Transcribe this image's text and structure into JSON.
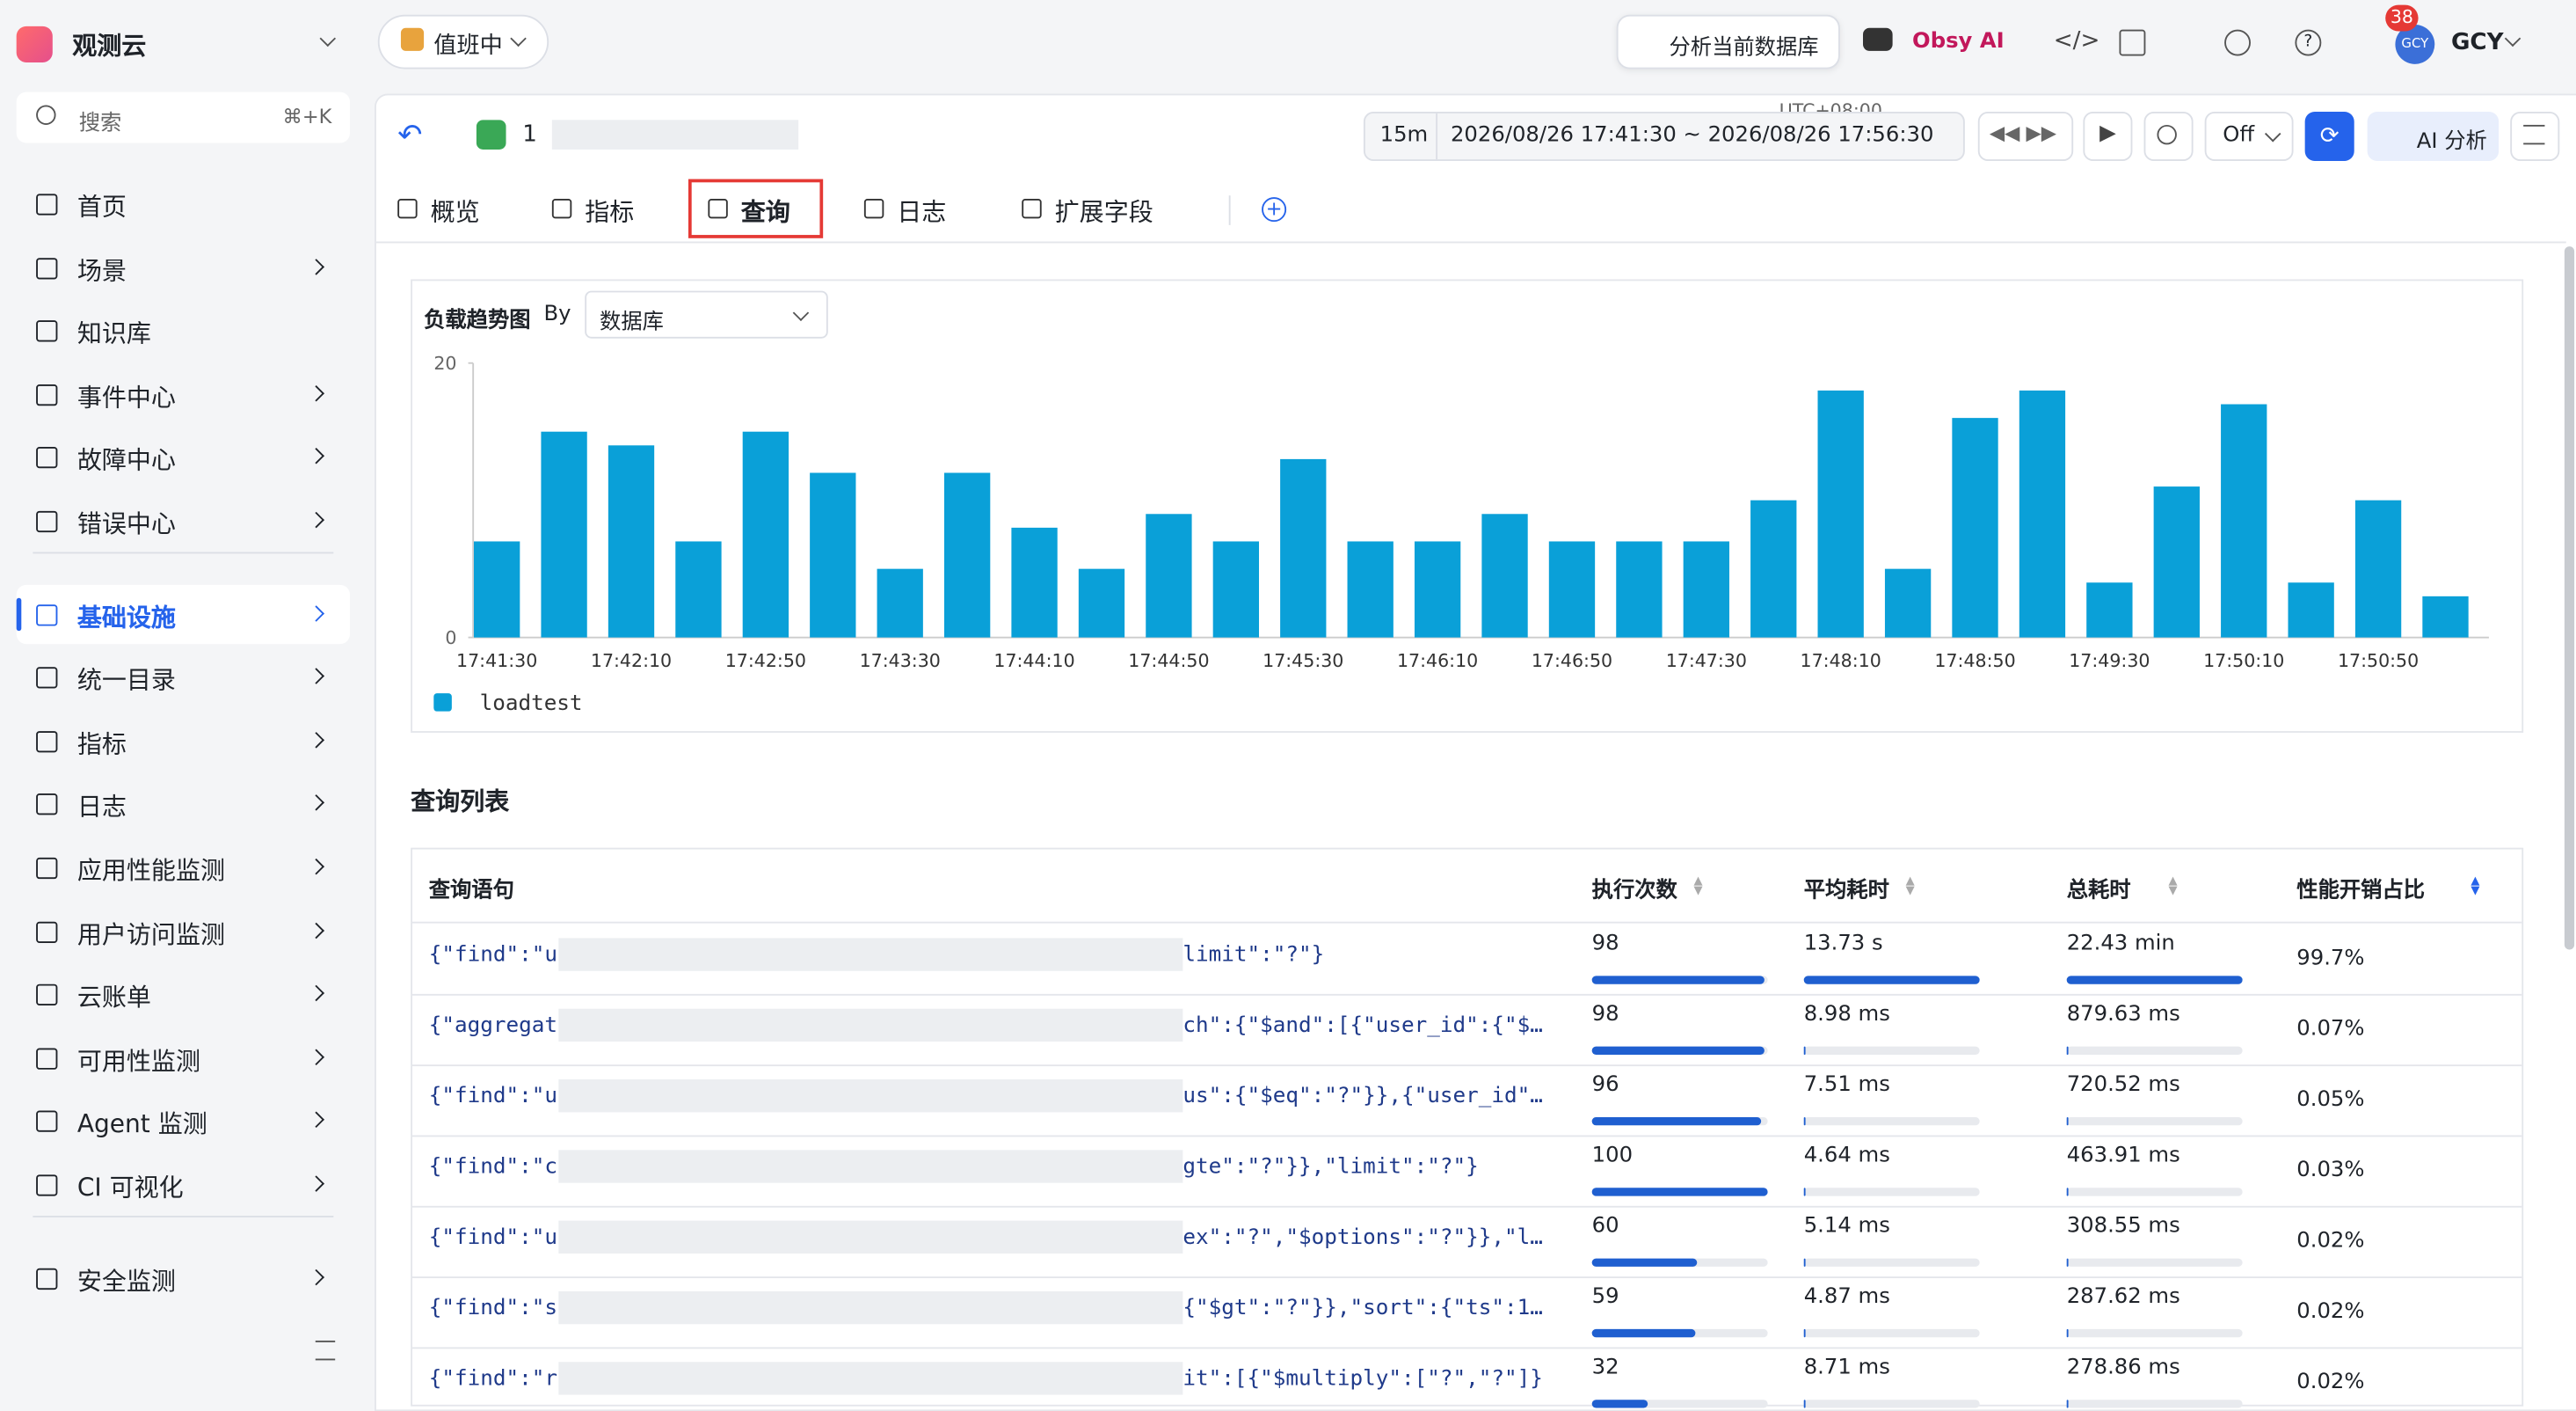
{
  "topbar": {
    "brand": "观测云",
    "duty": "值班中",
    "analyze": "分析当前数据库",
    "obsy": "Obsy AI",
    "badge": "38",
    "avatar": "GCY",
    "user": "GCY"
  },
  "search": {
    "placeholder": "搜索",
    "shortcut": "⌘+K"
  },
  "nav": {
    "groups": [
      {
        "items": [
          {
            "label": "首页",
            "children": false
          },
          {
            "label": "场景",
            "children": true
          },
          {
            "label": "知识库",
            "children": false
          },
          {
            "label": "事件中心",
            "children": true
          },
          {
            "label": "故障中心",
            "children": true
          },
          {
            "label": "错误中心",
            "children": true
          }
        ]
      },
      {
        "items": [
          {
            "label": "基础设施",
            "children": true,
            "active": true
          },
          {
            "label": "统一目录",
            "children": true
          },
          {
            "label": "指标",
            "children": true
          },
          {
            "label": "日志",
            "children": true
          },
          {
            "label": "应用性能监测",
            "children": true
          },
          {
            "label": "用户访问监测",
            "children": true
          },
          {
            "label": "云账单",
            "children": true
          },
          {
            "label": "可用性监测",
            "children": true
          },
          {
            "label": "Agent 监测",
            "children": true
          },
          {
            "label": "CI 可视化",
            "children": true
          }
        ]
      },
      {
        "items": [
          {
            "label": "安全监测",
            "children": true
          }
        ]
      }
    ]
  },
  "header": {
    "name": "1",
    "range_short": "15m",
    "timezone": "UTC+08:00",
    "range": "2026/08/26 17:41:30 ~ 2026/08/26 17:56:30",
    "refresh": "Off",
    "ai": "AI 分析"
  },
  "tabs": [
    {
      "label": "概览"
    },
    {
      "label": "指标"
    },
    {
      "label": "查询",
      "active": true
    },
    {
      "label": "日志"
    },
    {
      "label": "扩展字段"
    }
  ],
  "chart_data": {
    "type": "bar",
    "title": "负载趋势图",
    "by_label": "By",
    "by_value": "数据库",
    "categories": [
      "17:41:30",
      null,
      "17:42:10",
      null,
      "17:42:50",
      null,
      "17:43:30",
      null,
      "17:44:10",
      null,
      "17:44:50",
      null,
      "17:45:30",
      null,
      "17:46:10",
      null,
      "17:46:50",
      null,
      "17:47:30",
      null,
      "17:48:10",
      null,
      "17:48:50",
      null,
      "17:49:30",
      null,
      "17:50:10",
      null,
      "17:50:50",
      null
    ],
    "series": [
      {
        "name": "loadtest",
        "color": "#0aa0d8",
        "values": [
          7,
          15,
          14,
          7,
          15,
          12,
          5,
          12,
          8,
          5,
          9,
          7,
          13,
          7,
          7,
          9,
          7,
          7,
          7,
          10,
          18,
          5,
          16,
          18,
          4,
          11,
          17,
          4,
          10,
          3
        ]
      }
    ],
    "ylim": [
      0,
      20
    ],
    "yticks": [
      0,
      20
    ],
    "legend": "bottom-left"
  },
  "table": {
    "title": "查询列表",
    "columns": [
      "查询语句",
      "执行次数",
      "平均耗时",
      "总耗时",
      "性能开销占比"
    ],
    "rows": [
      {
        "prefix": "{\"find\":\"u",
        "suffix": "limit\":\"?\"}",
        "count": 98,
        "avg": {
          "value": 13730,
          "label": "13.73 s"
        },
        "total": {
          "value": 1345800,
          "label": "22.43 min"
        },
        "ratio": "99.7%"
      },
      {
        "prefix": "{\"aggregat",
        "suffix": "ch\":{\"$and\":[{\"user_id\":{\"$g…",
        "count": 98,
        "avg": {
          "value": 8.98,
          "label": "8.98 ms"
        },
        "total": {
          "value": 879.63,
          "label": "879.63 ms"
        },
        "ratio": "0.07%"
      },
      {
        "prefix": "{\"find\":\"u",
        "suffix": "us\":{\"$eq\":\"?\"}},{\"user_id\":…",
        "count": 96,
        "avg": {
          "value": 7.51,
          "label": "7.51 ms"
        },
        "total": {
          "value": 720.52,
          "label": "720.52 ms"
        },
        "ratio": "0.05%"
      },
      {
        "prefix": "{\"find\":\"c",
        "suffix": "gte\":\"?\"}},\"limit\":\"?\"}",
        "count": 100,
        "avg": {
          "value": 4.64,
          "label": "4.64 ms"
        },
        "total": {
          "value": 463.91,
          "label": "463.91 ms"
        },
        "ratio": "0.03%"
      },
      {
        "prefix": "{\"find\":\"u",
        "suffix": "ex\":\"?\",\"$options\":\"?\"}},\"li…",
        "count": 60,
        "avg": {
          "value": 5.14,
          "label": "5.14 ms"
        },
        "total": {
          "value": 308.55,
          "label": "308.55 ms"
        },
        "ratio": "0.02%"
      },
      {
        "prefix": "{\"find\":\"s",
        "suffix": "{\"$gt\":\"?\"}},\"sort\":{\"ts\":1}}",
        "count": 59,
        "avg": {
          "value": 4.87,
          "label": "4.87 ms"
        },
        "total": {
          "value": 287.62,
          "label": "287.62 ms"
        },
        "ratio": "0.02%"
      },
      {
        "prefix": "{\"find\":\"r",
        "suffix": "it\":[{\"$multiply\":[\"?\",\"?\"]}",
        "count": 32,
        "avg": {
          "value": 8.71,
          "label": "8.71 ms"
        },
        "total": {
          "value": 278.86,
          "label": "278.86 ms"
        },
        "ratio": "0.02%"
      }
    ]
  }
}
